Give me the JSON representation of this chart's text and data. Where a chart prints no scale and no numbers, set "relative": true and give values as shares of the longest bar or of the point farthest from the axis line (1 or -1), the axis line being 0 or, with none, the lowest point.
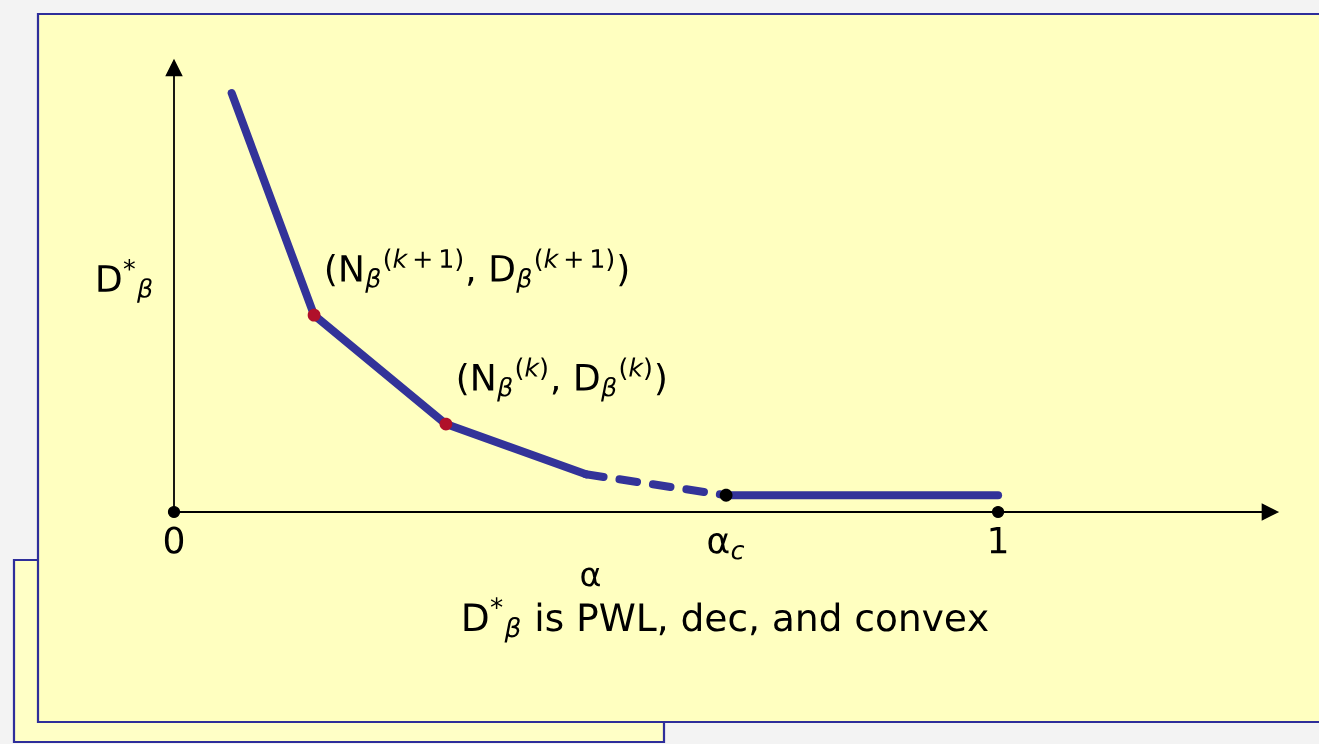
{
  "chart_data": {
    "type": "line",
    "relative": true,
    "xlabel": "α",
    "ylabel": "D$^{*}$$_{β}$",
    "xlim": [
      0,
      1.33
    ],
    "xticks": [
      0,
      {
        "value": 0.67,
        "label": "α$_{c}$"
      },
      1
    ],
    "series": [
      {
        "color": "#333399",
        "line_style": "solid",
        "x": [
          0.07,
          0.17,
          0.33,
          0.5
        ],
        "values": [
          1,
          0.47,
          0.21,
          0.09
        ]
      },
      {
        "color": "#333399",
        "line_style": "dashed",
        "x": [
          0.5,
          0.67
        ],
        "values": [
          0.09,
          0.04
        ]
      },
      {
        "color": "#333399",
        "line_style": "solid",
        "x": [
          0.67,
          1
        ],
        "values": [
          0.04,
          0.04
        ]
      },
      {
        "type": "scatter",
        "color": "#b0102a",
        "marker": "circle",
        "x": [
          0.17,
          0.33
        ],
        "values": [
          0.47,
          0.21
        ]
      },
      {
        "type": "scatter",
        "color": "#000000",
        "marker": "circle",
        "x": [
          0.67
        ],
        "values": [
          0.04
        ]
      }
    ],
    "annotations": [
      {
        "text": "(N$_{β}$$^{(k+1)}$, D$_{β}$$^{(k+1)}$)",
        "x": 0.17,
        "y": 0.47
      },
      {
        "text": "(N$_{β}$$^{(k)}$, D$_{β}$$^{(k)}$)",
        "x": 0.33,
        "y": 0.21
      },
      "D$^{*}$$_{β}$ is PWL, dec, and convex"
    ]
  }
}
